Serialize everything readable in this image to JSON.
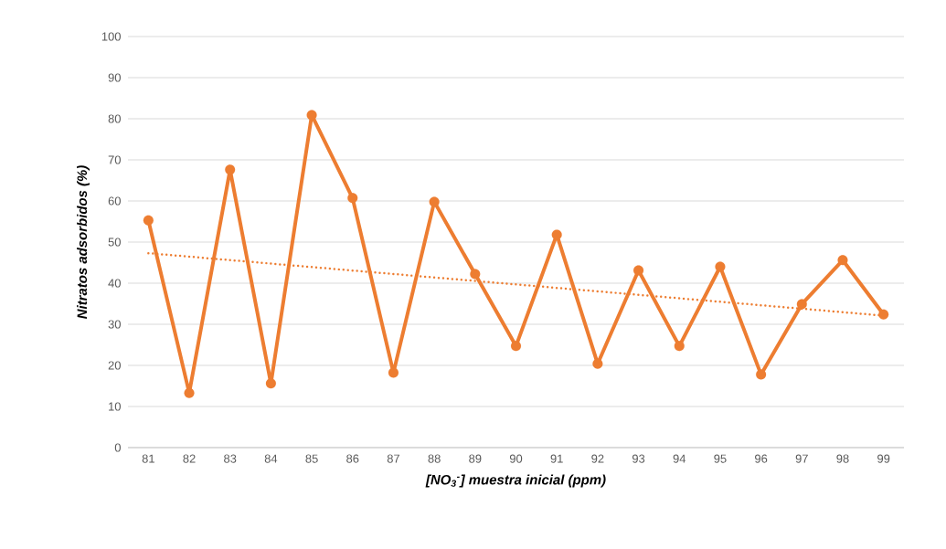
{
  "chart_data": {
    "type": "line",
    "xlabel": "[NO$_{3}$$^{-}$] muestra inicial (ppm)",
    "ylabel": "Nitratos adsorbidos (%)",
    "x": [
      81,
      82,
      83,
      84,
      85,
      86,
      87,
      88,
      89,
      90,
      91,
      92,
      93,
      94,
      95,
      96,
      97,
      98,
      99
    ],
    "xlim": [
      80.5,
      99.5
    ],
    "xticks": [
      81,
      82,
      83,
      84,
      85,
      86,
      87,
      88,
      89,
      90,
      91,
      92,
      93,
      94,
      95,
      96,
      97,
      98,
      99
    ],
    "ylim": [
      0,
      100
    ],
    "yticks": [
      0,
      10,
      20,
      30,
      40,
      50,
      60,
      70,
      80,
      90,
      100
    ],
    "grid": "y",
    "marker": "circle",
    "line_style": "solid",
    "series": [
      {
        "color": "#ed7d31",
        "values": [
          55.3,
          13.3,
          67.6,
          15.6,
          80.9,
          60.7,
          18.2,
          59.8,
          42.2,
          24.7,
          51.8,
          20.4,
          43.1,
          24.7,
          44.0,
          17.8,
          34.9,
          45.6,
          32.4
        ]
      },
      {
        "type": "line",
        "color": "#ed7d31",
        "marker": "none",
        "line_style": "dotted",
        "x": [
          81,
          99
        ],
        "values": [
          47.3,
          32.1
        ]
      }
    ]
  }
}
